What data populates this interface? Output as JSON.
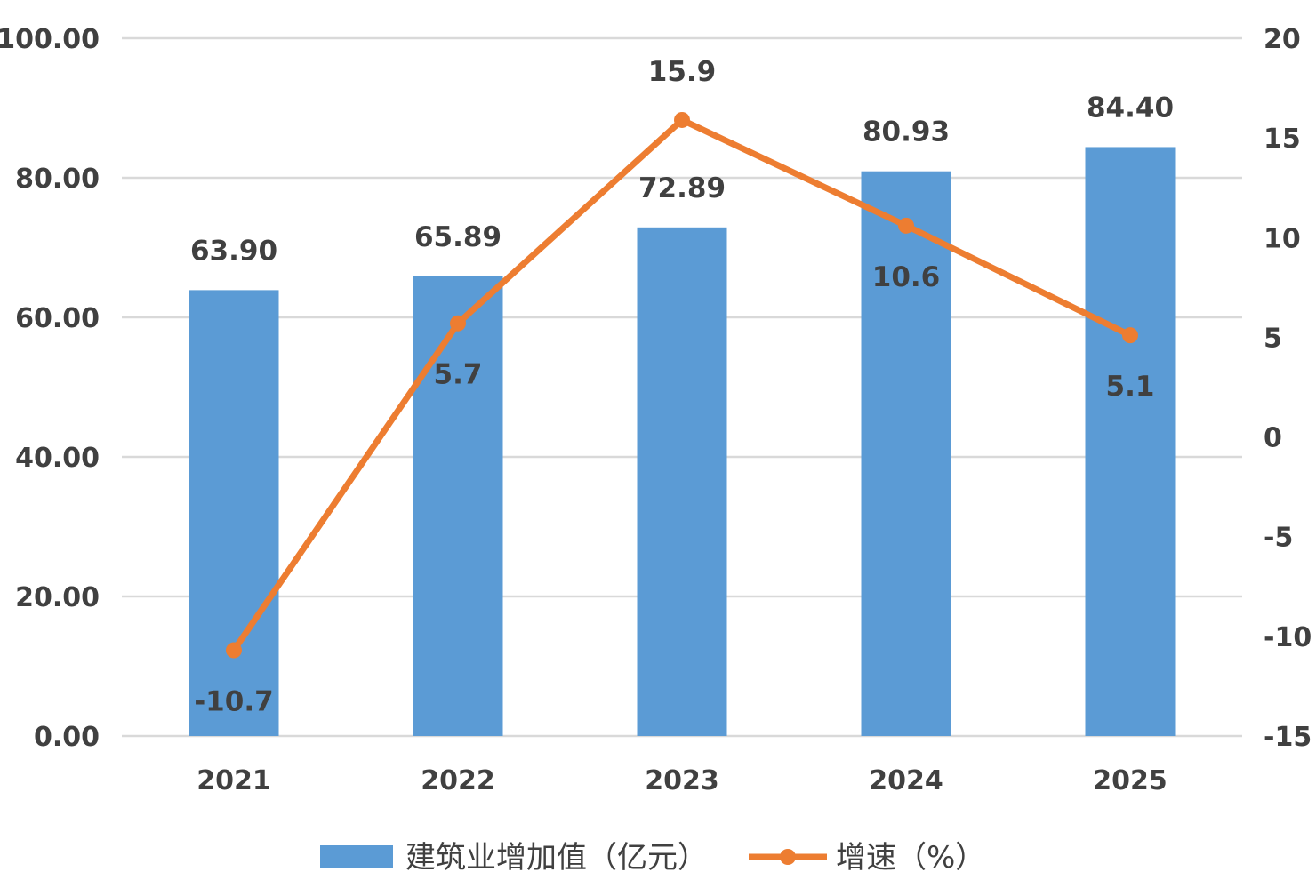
{
  "chart_data": {
    "type": "bar",
    "categories": [
      "2021",
      "2022",
      "2023",
      "2024",
      "2025"
    ],
    "series": [
      {
        "name": "建筑业增加值（亿元）",
        "type": "bar",
        "axis": "left",
        "color": "#5B9BD5",
        "values": [
          63.9,
          65.89,
          72.89,
          80.93,
          84.4
        ],
        "labels": [
          "63.90",
          "65.89",
          "72.89",
          "80.93",
          "84.40"
        ]
      },
      {
        "name": "增速（%）",
        "type": "line",
        "axis": "right",
        "color": "#ED7D31",
        "values": [
          -10.7,
          5.7,
          15.9,
          10.6,
          5.1
        ],
        "labels": [
          "-10.7",
          "5.7",
          "15.9",
          "10.6",
          "5.1"
        ]
      }
    ],
    "left_axis": {
      "ylim": [
        0,
        100
      ],
      "ticks": [
        "0.00",
        "20.00",
        "40.00",
        "60.00",
        "80.00",
        "100.00"
      ]
    },
    "right_axis": {
      "ylim": [
        -15,
        20
      ],
      "ticks": [
        "-15",
        "-10",
        "-5",
        "0",
        "5",
        "10",
        "15",
        "20"
      ]
    },
    "grid": true,
    "legend_position": "bottom"
  }
}
